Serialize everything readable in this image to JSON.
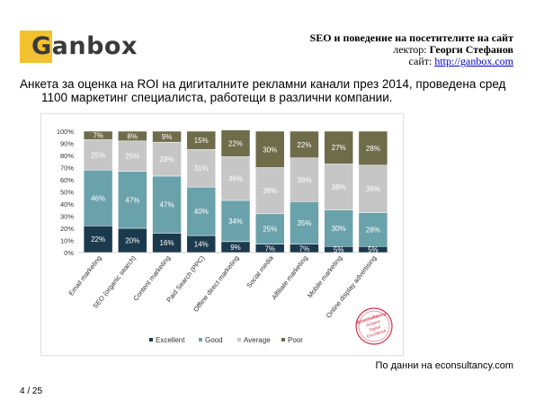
{
  "brand": {
    "name": "Ganbox"
  },
  "header": {
    "title": "SEO и поведение на посетителите на сайт",
    "lecturer_label": "лектор: ",
    "lecturer_name": "Георги Стефанов",
    "site_label": "сайт: ",
    "site_url": "http://ganbox.com"
  },
  "intro": {
    "line1": "Анкета за оценка на ROI на дигиталните рекламни канали през 2014, проведена сред",
    "line2": "1100 маркетинг специалиста, работещи в различни компании."
  },
  "chart_data": {
    "type": "bar",
    "stacked": true,
    "categories": [
      "Email marketing",
      "SEO (organic search)",
      "Content marketing",
      "Paid Search (PPC)",
      "Offline direct marketing",
      "Social media",
      "Affiliate marketing",
      "Mobile marketing",
      "Online display advertising"
    ],
    "series": [
      {
        "name": "Excellent",
        "color": "#1c3a4e",
        "values": [
          22,
          20,
          16,
          14,
          9,
          7,
          7,
          5,
          5
        ]
      },
      {
        "name": "Good",
        "color": "#6aa2ab",
        "values": [
          46,
          47,
          47,
          40,
          34,
          25,
          35,
          30,
          28
        ]
      },
      {
        "name": "Average",
        "color": "#c6c6c6",
        "values": [
          25,
          25,
          28,
          31,
          36,
          38,
          36,
          38,
          39
        ]
      },
      {
        "name": "Poor",
        "color": "#6f6c4a",
        "values": [
          7,
          8,
          9,
          15,
          22,
          30,
          22,
          27,
          28
        ]
      }
    ],
    "y_ticks": [
      "0%",
      "10%",
      "20%",
      "30%",
      "40%",
      "50%",
      "60%",
      "70%",
      "80%",
      "90%",
      "100%"
    ],
    "ylim": [
      0,
      100
    ],
    "legend_position": "bottom",
    "data_labels": [
      [
        "22%",
        "46%",
        "25%",
        "7%"
      ],
      [
        "20%",
        "47%",
        "25%",
        "8%"
      ],
      [
        "16%",
        "47%",
        "28%",
        "9%"
      ],
      [
        "14%",
        "40%",
        "31%",
        "15%"
      ],
      [
        "9%",
        "34%",
        "36%",
        "22%"
      ],
      [
        "7%",
        "25%",
        "38%",
        "30%"
      ],
      [
        "7%",
        "35%",
        "36%",
        "22%"
      ],
      [
        "5%",
        "30%",
        "38%",
        "27%"
      ],
      [
        "5%",
        "28%",
        "39%",
        "28%"
      ]
    ],
    "stamp": {
      "text": [
        "Econsultancy",
        "Achieve",
        "Digital",
        "Excellence"
      ],
      "color": "#d0314a"
    }
  },
  "source_note": "По данни на econsultancy.com",
  "page_number": "4 / 25"
}
